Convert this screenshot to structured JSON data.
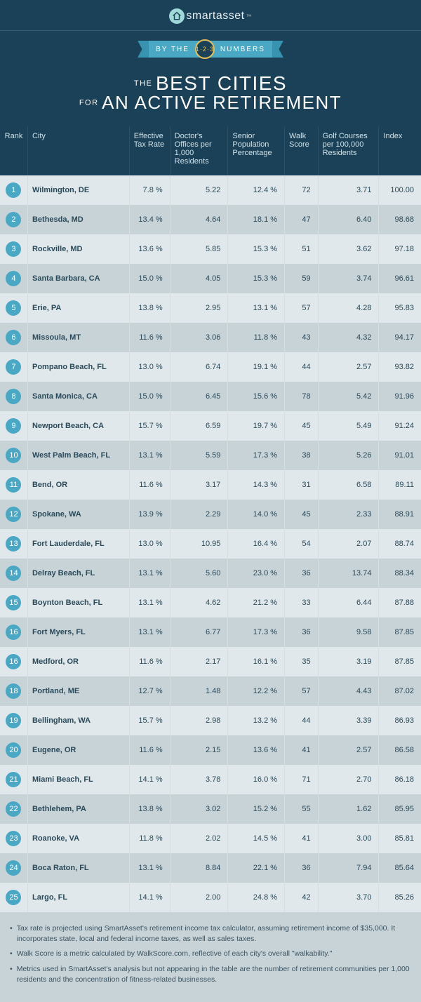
{
  "brand": {
    "name": "smartasset",
    "tm": "™"
  },
  "ribbon": {
    "left": "BY THE",
    "center": "1·2·3",
    "right": "NUMBERS"
  },
  "headline": {
    "small1": "THE",
    "big1": "BEST CITIES",
    "small2": "FOR",
    "big2": "AN ACTIVE RETIREMENT"
  },
  "columns": {
    "rank": "Rank",
    "city": "City",
    "tax": "Effective Tax Rate",
    "doc": "Doctor's Offices per 1,000 Residents",
    "sen": "Senior Population Percentage",
    "walk": "Walk Score",
    "golf": "Golf Courses per 100,000 Residents",
    "idx": "Index"
  },
  "rows": [
    {
      "rank": "1",
      "city": "Wilmington, DE",
      "tax": "7.8 %",
      "doc": "5.22",
      "sen": "12.4 %",
      "walk": "72",
      "golf": "3.71",
      "idx": "100.00"
    },
    {
      "rank": "2",
      "city": "Bethesda, MD",
      "tax": "13.4 %",
      "doc": "4.64",
      "sen": "18.1 %",
      "walk": "47",
      "golf": "6.40",
      "idx": "98.68"
    },
    {
      "rank": "3",
      "city": "Rockville, MD",
      "tax": "13.6 %",
      "doc": "5.85",
      "sen": "15.3 %",
      "walk": "51",
      "golf": "3.62",
      "idx": "97.18"
    },
    {
      "rank": "4",
      "city": "Santa Barbara, CA",
      "tax": "15.0 %",
      "doc": "4.05",
      "sen": "15.3 %",
      "walk": "59",
      "golf": "3.74",
      "idx": "96.61"
    },
    {
      "rank": "5",
      "city": "Erie, PA",
      "tax": "13.8 %",
      "doc": "2.95",
      "sen": "13.1 %",
      "walk": "57",
      "golf": "4.28",
      "idx": "95.83"
    },
    {
      "rank": "6",
      "city": "Missoula, MT",
      "tax": "11.6 %",
      "doc": "3.06",
      "sen": "11.8 %",
      "walk": "43",
      "golf": "4.32",
      "idx": "94.17"
    },
    {
      "rank": "7",
      "city": "Pompano Beach, FL",
      "tax": "13.0 %",
      "doc": "6.74",
      "sen": "19.1 %",
      "walk": "44",
      "golf": "2.57",
      "idx": "93.82"
    },
    {
      "rank": "8",
      "city": "Santa Monica, CA",
      "tax": "15.0 %",
      "doc": "6.45",
      "sen": "15.6 %",
      "walk": "78",
      "golf": "5.42",
      "idx": "91.96"
    },
    {
      "rank": "9",
      "city": "Newport Beach, CA",
      "tax": "15.7 %",
      "doc": "6.59",
      "sen": "19.7 %",
      "walk": "45",
      "golf": "5.49",
      "idx": "91.24"
    },
    {
      "rank": "10",
      "city": "West Palm Beach, FL",
      "tax": "13.1 %",
      "doc": "5.59",
      "sen": "17.3 %",
      "walk": "38",
      "golf": "5.26",
      "idx": "91.01"
    },
    {
      "rank": "11",
      "city": "Bend, OR",
      "tax": "11.6 %",
      "doc": "3.17",
      "sen": "14.3 %",
      "walk": "31",
      "golf": "6.58",
      "idx": "89.11"
    },
    {
      "rank": "12",
      "city": "Spokane, WA",
      "tax": "13.9 %",
      "doc": "2.29",
      "sen": "14.0 %",
      "walk": "45",
      "golf": "2.33",
      "idx": "88.91"
    },
    {
      "rank": "13",
      "city": "Fort Lauderdale, FL",
      "tax": "13.0 %",
      "doc": "10.95",
      "sen": "16.4 %",
      "walk": "54",
      "golf": "2.07",
      "idx": "88.74"
    },
    {
      "rank": "14",
      "city": "Delray Beach, FL",
      "tax": "13.1 %",
      "doc": "5.60",
      "sen": "23.0 %",
      "walk": "36",
      "golf": "13.74",
      "idx": "88.34"
    },
    {
      "rank": "15",
      "city": "Boynton Beach, FL",
      "tax": "13.1 %",
      "doc": "4.62",
      "sen": "21.2 %",
      "walk": "33",
      "golf": "6.44",
      "idx": "87.88"
    },
    {
      "rank": "16",
      "city": "Fort Myers, FL",
      "tax": "13.1 %",
      "doc": "6.77",
      "sen": "17.3 %",
      "walk": "36",
      "golf": "9.58",
      "idx": "87.85"
    },
    {
      "rank": "16",
      "city": "Medford, OR",
      "tax": "11.6 %",
      "doc": "2.17",
      "sen": "16.1 %",
      "walk": "35",
      "golf": "3.19",
      "idx": "87.85"
    },
    {
      "rank": "18",
      "city": "Portland, ME",
      "tax": "12.7 %",
      "doc": "1.48",
      "sen": "12.2 %",
      "walk": "57",
      "golf": "4.43",
      "idx": "87.02"
    },
    {
      "rank": "19",
      "city": "Bellingham, WA",
      "tax": "15.7 %",
      "doc": "2.98",
      "sen": "13.2 %",
      "walk": "44",
      "golf": "3.39",
      "idx": "86.93"
    },
    {
      "rank": "20",
      "city": "Eugene, OR",
      "tax": "11.6 %",
      "doc": "2.15",
      "sen": "13.6 %",
      "walk": "41",
      "golf": "2.57",
      "idx": "86.58"
    },
    {
      "rank": "21",
      "city": "Miami Beach, FL",
      "tax": "14.1 %",
      "doc": "3.78",
      "sen": "16.0 %",
      "walk": "71",
      "golf": "2.70",
      "idx": "86.18"
    },
    {
      "rank": "22",
      "city": "Bethlehem, PA",
      "tax": "13.8 %",
      "doc": "3.02",
      "sen": "15.2 %",
      "walk": "55",
      "golf": "1.62",
      "idx": "85.95"
    },
    {
      "rank": "23",
      "city": "Roanoke, VA",
      "tax": "11.8 %",
      "doc": "2.02",
      "sen": "14.5 %",
      "walk": "41",
      "golf": "3.00",
      "idx": "85.81"
    },
    {
      "rank": "24",
      "city": "Boca Raton, FL",
      "tax": "13.1 %",
      "doc": "8.84",
      "sen": "22.1 %",
      "walk": "36",
      "golf": "7.94",
      "idx": "85.64"
    },
    {
      "rank": "25",
      "city": "Largo, FL",
      "tax": "14.1 %",
      "doc": "2.00",
      "sen": "24.8 %",
      "walk": "42",
      "golf": "3.70",
      "idx": "85.26"
    }
  ],
  "footnotes": [
    "Tax rate is projected using SmartAsset's retirement income tax calculator, assuming retirement income of $35,000. It incorporates state, local and federal income taxes, as well as sales taxes.",
    "Walk Score is a metric calculated by WalkScore.com, reflective of each city's overall \"walkability.\"",
    "Metrics used in SmartAsset's analysis but not appearing in the table are the number of retirement communities per 1,000 residents and the concentration of fitness-related businesses."
  ],
  "style": {
    "bg": "#1a4157",
    "row_odd": "#e1e8eb",
    "row_even": "#c8d3d8",
    "accent": "#4aa8c4",
    "gold": "#e8c05a",
    "teal_logo": "#9fd8d8"
  }
}
